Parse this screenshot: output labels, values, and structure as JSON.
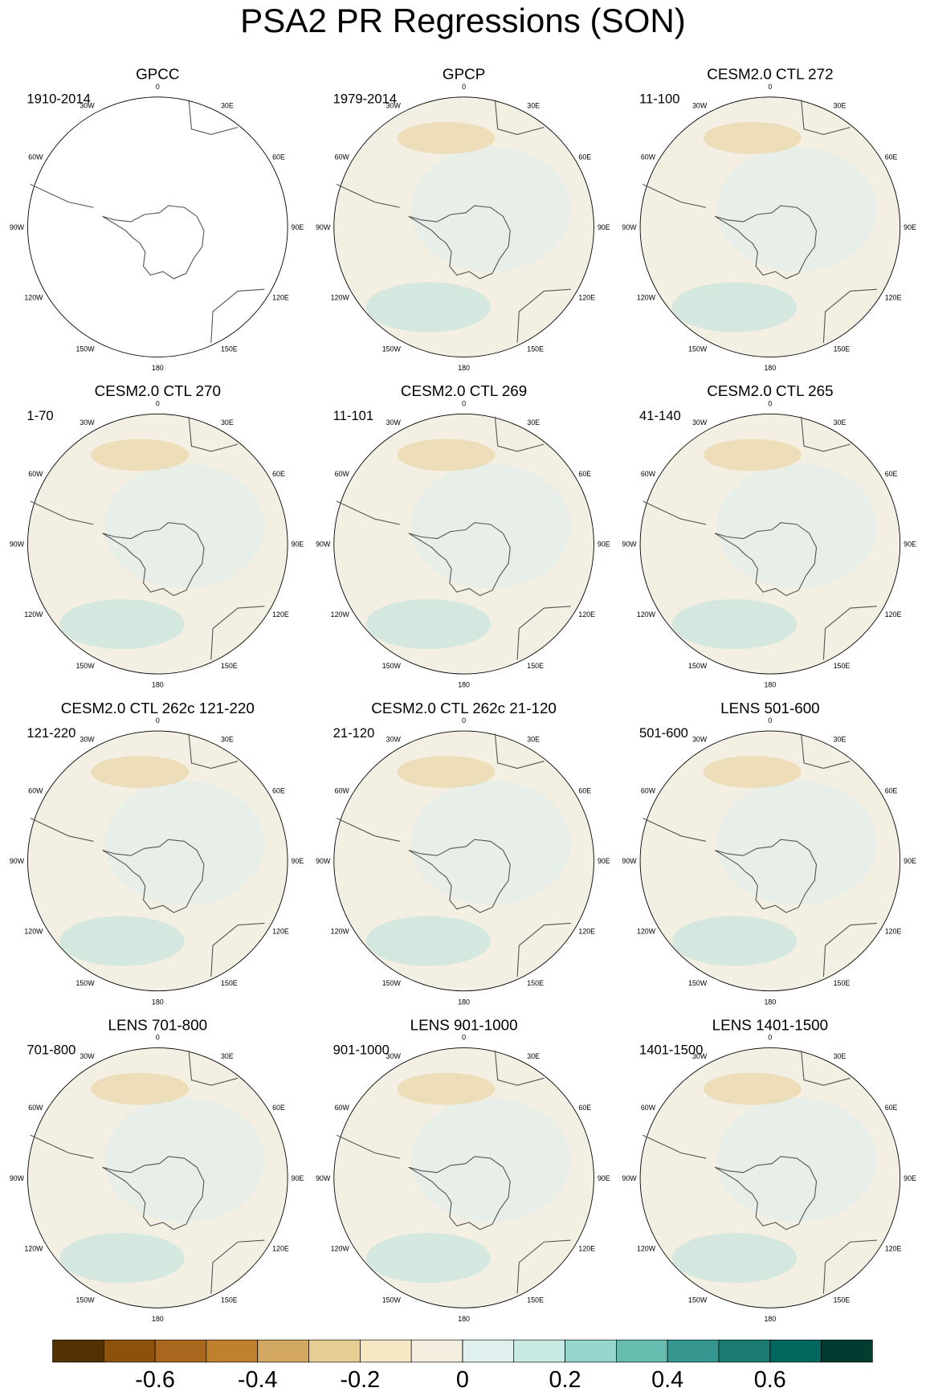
{
  "chart_data": {
    "type": "polar-maps",
    "title": "PSA2 PR Regressions (SON)",
    "panels": [
      {
        "title": "GPCC",
        "period": "1910-2014"
      },
      {
        "title": "GPCP",
        "period": "1979-2014"
      },
      {
        "title": "CESM2.0 CTL 272",
        "period": "11-100"
      },
      {
        "title": "CESM2.0 CTL 270",
        "period": "1-70"
      },
      {
        "title": "CESM2.0 CTL 269",
        "period": "11-101"
      },
      {
        "title": "CESM2.0 CTL 265",
        "period": "41-140"
      },
      {
        "title": "CESM2.0 CTL 262c 121-220",
        "period": "121-220"
      },
      {
        "title": "CESM2.0 CTL 262c 21-120",
        "period": "21-120"
      },
      {
        "title": "LENS 501-600",
        "period": "501-600"
      },
      {
        "title": "LENS 701-800",
        "period": "701-800"
      },
      {
        "title": "LENS 901-1000",
        "period": "901-1000"
      },
      {
        "title": "LENS 1401-1500",
        "period": "1401-1500"
      }
    ],
    "longitude_labels": [
      "0",
      "30E",
      "60E",
      "90E",
      "120E",
      "150E",
      "180",
      "150W",
      "120W",
      "90W",
      "60W",
      "30W"
    ],
    "colorbar": {
      "lim": [
        -0.8,
        0.8
      ],
      "colors": [
        "#543005",
        "#8c510a",
        "#a8671c",
        "#bf812d",
        "#d2a863",
        "#e6cd94",
        "#f6e8c3",
        "#f3eee0",
        "#e0f0ee",
        "#c7eae5",
        "#95d5cb",
        "#67bcb0",
        "#35978f",
        "#1b7c72",
        "#01665e",
        "#003c30"
      ],
      "ticks": [
        -0.6,
        -0.4,
        -0.2,
        0,
        0.2,
        0.4,
        0.6
      ]
    }
  }
}
